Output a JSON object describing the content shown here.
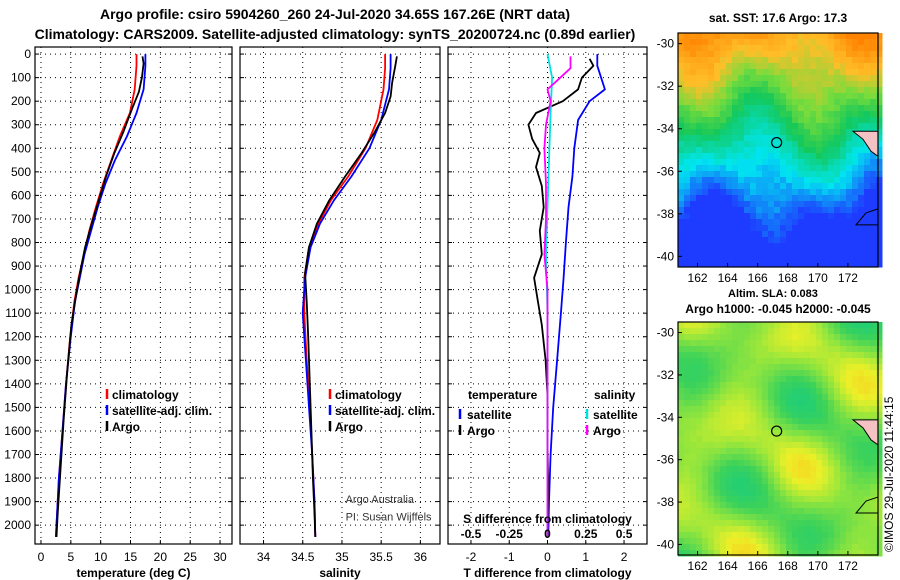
{
  "header": {
    "title_line1": "Argo profile: csiro 5904260_260 24-Jul-2020 34.65S 167.26E (NRT data)",
    "title_line2": "Climatology: CARS2009. Satellite-adjusted climatology: synTS_20200724.nc (0.89d earlier)"
  },
  "chart_data": [
    {
      "type": "line",
      "name": "temperature-profile",
      "xlabel": "temperature (deg C)",
      "ylabel": "depth",
      "xlim": [
        -1,
        32
      ],
      "ylim": [
        2080,
        -30
      ],
      "xticks": [
        0,
        5,
        10,
        15,
        20,
        25,
        30
      ],
      "yticks": [
        0,
        100,
        200,
        300,
        400,
        500,
        600,
        700,
        800,
        900,
        1000,
        1100,
        1200,
        1300,
        1400,
        1500,
        1600,
        1700,
        1800,
        1900,
        2000
      ],
      "grid": true,
      "legend": [
        {
          "label": "climatology",
          "color": "#ff0000"
        },
        {
          "label": "satellite-adj. clim.",
          "color": "#0000ff"
        },
        {
          "label": "Argo",
          "color": "#000000"
        }
      ],
      "series": [
        {
          "name": "climatology",
          "color": "#ff0000",
          "points": [
            [
              16.0,
              0
            ],
            [
              16.0,
              50
            ],
            [
              15.7,
              150
            ],
            [
              14.9,
              250
            ],
            [
              13.2,
              350
            ],
            [
              11.8,
              450
            ],
            [
              10.4,
              550
            ],
            [
              9.2,
              650
            ],
            [
              8.1,
              750
            ],
            [
              7.2,
              850
            ],
            [
              6.3,
              950
            ],
            [
              5.6,
              1050
            ],
            [
              4.9,
              1200
            ],
            [
              4.2,
              1400
            ],
            [
              3.6,
              1600
            ],
            [
              3.0,
              1800
            ],
            [
              2.6,
              2000
            ],
            [
              2.5,
              2050
            ]
          ]
        },
        {
          "name": "satellite-adj. clim.",
          "color": "#0000ff",
          "points": [
            [
              17.5,
              0
            ],
            [
              17.5,
              50
            ],
            [
              17.2,
              150
            ],
            [
              16.0,
              250
            ],
            [
              14.4,
              350
            ],
            [
              12.4,
              450
            ],
            [
              10.8,
              550
            ],
            [
              9.5,
              650
            ],
            [
              8.4,
              750
            ],
            [
              7.3,
              850
            ],
            [
              6.5,
              950
            ],
            [
              5.7,
              1050
            ],
            [
              5.0,
              1200
            ],
            [
              4.2,
              1400
            ],
            [
              3.6,
              1600
            ],
            [
              3.0,
              1800
            ],
            [
              2.6,
              2000
            ],
            [
              2.5,
              2050
            ]
          ]
        },
        {
          "name": "Argo",
          "color": "#000000",
          "points": [
            [
              17.0,
              10
            ],
            [
              17.2,
              40
            ],
            [
              16.9,
              100
            ],
            [
              16.4,
              160
            ],
            [
              15.3,
              230
            ],
            [
              13.8,
              330
            ],
            [
              12.3,
              420
            ],
            [
              10.9,
              520
            ],
            [
              9.7,
              620
            ],
            [
              8.5,
              720
            ],
            [
              7.4,
              820
            ],
            [
              6.6,
              920
            ],
            [
              5.9,
              1020
            ],
            [
              5.1,
              1150
            ],
            [
              4.4,
              1350
            ],
            [
              3.8,
              1550
            ],
            [
              3.3,
              1750
            ],
            [
              2.8,
              1950
            ],
            [
              2.6,
              2050
            ]
          ]
        }
      ],
      "annotations": []
    },
    {
      "type": "line",
      "name": "salinity-profile",
      "xlabel": "salinity",
      "ylabel": "depth",
      "xlim": [
        33.7,
        36.25
      ],
      "ylim": [
        2080,
        -30
      ],
      "xticks": [
        34,
        34.5,
        35,
        35.5,
        36
      ],
      "yticks": [
        0,
        100,
        200,
        300,
        400,
        500,
        600,
        700,
        800,
        900,
        1000,
        1100,
        1200,
        1300,
        1400,
        1500,
        1600,
        1700,
        1800,
        1900,
        2000
      ],
      "grid": true,
      "legend": [
        {
          "label": "climatology",
          "color": "#ff0000"
        },
        {
          "label": "satellite-adj. clim.",
          "color": "#0000ff"
        },
        {
          "label": "Argo",
          "color": "#000000"
        }
      ],
      "series": [
        {
          "name": "climatology",
          "color": "#ff0000",
          "points": [
            [
              35.55,
              0
            ],
            [
              35.55,
              60
            ],
            [
              35.53,
              150
            ],
            [
              35.45,
              280
            ],
            [
              35.3,
              400
            ],
            [
              35.08,
              520
            ],
            [
              34.86,
              620
            ],
            [
              34.7,
              720
            ],
            [
              34.58,
              820
            ],
            [
              34.52,
              950
            ],
            [
              34.52,
              1100
            ],
            [
              34.55,
              1300
            ],
            [
              34.59,
              1500
            ],
            [
              34.62,
              1700
            ],
            [
              34.65,
              1900
            ],
            [
              34.66,
              2050
            ]
          ]
        },
        {
          "name": "satellite-adj. clim.",
          "color": "#0000ff",
          "points": [
            [
              35.62,
              0
            ],
            [
              35.62,
              60
            ],
            [
              35.6,
              150
            ],
            [
              35.5,
              280
            ],
            [
              35.35,
              400
            ],
            [
              35.12,
              520
            ],
            [
              34.9,
              620
            ],
            [
              34.72,
              720
            ],
            [
              34.6,
              820
            ],
            [
              34.53,
              950
            ],
            [
              34.5,
              1100
            ],
            [
              34.54,
              1300
            ],
            [
              34.58,
              1500
            ],
            [
              34.62,
              1700
            ],
            [
              34.65,
              1900
            ],
            [
              34.66,
              2050
            ]
          ]
        },
        {
          "name": "Argo",
          "color": "#000000",
          "points": [
            [
              35.7,
              10
            ],
            [
              35.68,
              50
            ],
            [
              35.64,
              120
            ],
            [
              35.62,
              180
            ],
            [
              35.55,
              250
            ],
            [
              35.42,
              330
            ],
            [
              35.25,
              420
            ],
            [
              35.04,
              520
            ],
            [
              34.84,
              620
            ],
            [
              34.68,
              720
            ],
            [
              34.58,
              820
            ],
            [
              34.53,
              930
            ],
            [
              34.55,
              1050
            ],
            [
              34.57,
              1200
            ],
            [
              34.59,
              1400
            ],
            [
              34.61,
              1600
            ],
            [
              34.63,
              1800
            ],
            [
              34.65,
              1950
            ],
            [
              34.66,
              2050
            ]
          ]
        }
      ],
      "annotations": [
        {
          "text": "Argo Australia",
          "x": 35.25,
          "y": 1905
        },
        {
          "text": "PI: Susan Wijffels",
          "x": 35.25,
          "y": 1980
        }
      ]
    },
    {
      "type": "line",
      "name": "difference-profile",
      "xlabel": "T difference from climatology",
      "secondary_xlabel": "S difference from climatology",
      "ylabel": "depth",
      "xlim": [
        -2.6,
        2.6
      ],
      "ylim": [
        2080,
        -30
      ],
      "xticks": [
        -2,
        -1,
        0,
        1,
        2
      ],
      "secondary_xticks": [
        -0.5,
        -0.25,
        0,
        0.25,
        0.5
      ],
      "secondary_xtick_labels": [
        "-0.5",
        "-0.25",
        "0",
        "0.25",
        "0.5"
      ],
      "yticks": [
        0,
        100,
        200,
        300,
        400,
        500,
        600,
        700,
        800,
        900,
        1000,
        1100,
        1200,
        1300,
        1400,
        1500,
        1600,
        1700,
        1800,
        1900,
        2000
      ],
      "grid": true,
      "legend_titles": {
        "left": "temperature",
        "right": "salinity"
      },
      "legend": [
        {
          "label": "satellite",
          "color": "#0000ff",
          "group": "temperature"
        },
        {
          "label": "Argo",
          "color": "#000000",
          "group": "temperature"
        },
        {
          "label": "satellite",
          "color": "#00e0e0",
          "group": "salinity"
        },
        {
          "label": "Argo",
          "color": "#ff00ff",
          "group": "salinity"
        }
      ],
      "series": [
        {
          "name": "temperature satellite",
          "color": "#0000ff",
          "points": [
            [
              1.3,
              0
            ],
            [
              1.3,
              50
            ],
            [
              1.5,
              150
            ],
            [
              1.1,
              200
            ],
            [
              0.8,
              280
            ],
            [
              0.7,
              400
            ],
            [
              0.65,
              520
            ],
            [
              0.55,
              650
            ],
            [
              0.48,
              800
            ],
            [
              0.42,
              950
            ],
            [
              0.35,
              1100
            ],
            [
              0.25,
              1300
            ],
            [
              0.15,
              1500
            ],
            [
              0.08,
              1700
            ],
            [
              0.04,
              1900
            ],
            [
              0.02,
              2050
            ]
          ]
        },
        {
          "name": "temperature Argo",
          "color": "#000000",
          "points": [
            [
              1.1,
              20
            ],
            [
              1.2,
              50
            ],
            [
              0.9,
              100
            ],
            [
              0.8,
              150
            ],
            [
              0.4,
              200
            ],
            [
              -0.3,
              250
            ],
            [
              -0.5,
              300
            ],
            [
              -0.4,
              360
            ],
            [
              -0.2,
              420
            ],
            [
              -0.3,
              480
            ],
            [
              -0.15,
              560
            ],
            [
              -0.1,
              650
            ],
            [
              -0.2,
              750
            ],
            [
              -0.15,
              850
            ],
            [
              -0.35,
              950
            ],
            [
              -0.25,
              1050
            ],
            [
              -0.15,
              1150
            ],
            [
              -0.05,
              1300
            ],
            [
              0.0,
              1450
            ],
            [
              0.0,
              1650
            ],
            [
              0.02,
              1850
            ],
            [
              0.0,
              2050
            ]
          ]
        },
        {
          "name": "salinity satellite",
          "color": "#00e0e0",
          "points": [
            [
              0.0,
              0
            ],
            [
              0.03,
              100
            ],
            [
              0.02,
              250
            ],
            [
              0.01,
              450
            ],
            [
              0.0,
              650
            ],
            [
              -0.01,
              850
            ],
            [
              0.0,
              1100
            ],
            [
              0.0,
              1500
            ],
            [
              0.0,
              2050
            ]
          ]
        },
        {
          "name": "salinity Argo",
          "color": "#ff00ff",
          "points": [
            [
              0.15,
              10
            ],
            [
              0.15,
              60
            ],
            [
              0.05,
              120
            ],
            [
              0.0,
              150
            ],
            [
              0.02,
              200
            ],
            [
              -0.01,
              300
            ],
            [
              -0.02,
              400
            ],
            [
              -0.01,
              550
            ],
            [
              -0.01,
              700
            ],
            [
              -0.02,
              850
            ],
            [
              0.0,
              1000
            ],
            [
              0.0,
              1150
            ],
            [
              0.0,
              1350
            ],
            [
              0.0,
              1600
            ],
            [
              0.0,
              1850
            ],
            [
              0.0,
              2050
            ]
          ]
        }
      ]
    },
    {
      "type": "heatmap",
      "name": "sst-map",
      "title": "sat. SST: 17.6 Argo: 17.3",
      "xlim": [
        160.7,
        174
      ],
      "ylim": [
        -40.5,
        -29.5
      ],
      "xticks": [
        162,
        164,
        166,
        168,
        170,
        172
      ],
      "yticks": [
        -30,
        -32,
        -34,
        -36,
        -38,
        -40
      ],
      "marker": {
        "lon": 167.26,
        "lat": -34.65
      }
    },
    {
      "type": "heatmap",
      "name": "sla-map",
      "title_line1": "Altim. SLA: 0.083",
      "title_line2": "Argo h1000: -0.045 h2000: -0.045",
      "xlim": [
        160.7,
        174
      ],
      "ylim": [
        -40.5,
        -29.5
      ],
      "xticks": [
        162,
        164,
        166,
        168,
        170,
        172
      ],
      "yticks": [
        -30,
        -32,
        -34,
        -36,
        -38,
        -40
      ],
      "marker": {
        "lon": 167.26,
        "lat": -34.65
      }
    }
  ],
  "footer": {
    "credit": "©IMOS 29-Jul-2020 11:44:15"
  }
}
